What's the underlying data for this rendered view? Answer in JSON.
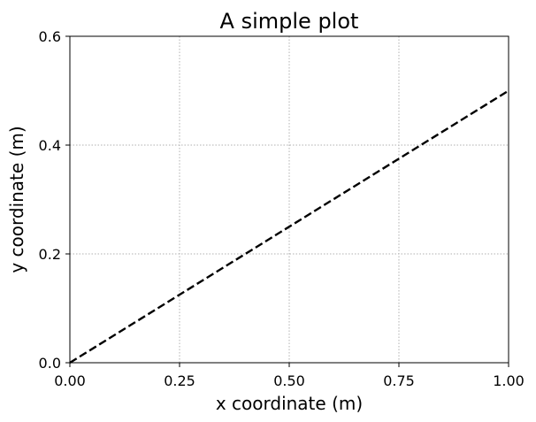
{
  "chart_data": {
    "type": "line",
    "title": "A simple plot",
    "xlabel": "x coordinate (m)",
    "ylabel": "y coordinate (m)",
    "xlim": [
      0,
      1
    ],
    "ylim": [
      0,
      0.6
    ],
    "x_ticks": [
      0,
      0.25,
      0.5,
      0.75,
      1.0
    ],
    "x_tick_labels": [
      "0.00",
      "0.25",
      "0.50",
      "0.75",
      "1.00"
    ],
    "y_ticks": [
      0,
      0.2,
      0.4,
      0.6
    ],
    "y_tick_labels": [
      "0.0",
      "0.2",
      "0.4",
      "0.6"
    ],
    "grid": true,
    "grid_style": "dotted",
    "series": [
      {
        "x": [
          0,
          1
        ],
        "y": [
          0,
          0.5
        ],
        "color": "#000000",
        "line_style": "dashed"
      }
    ]
  }
}
